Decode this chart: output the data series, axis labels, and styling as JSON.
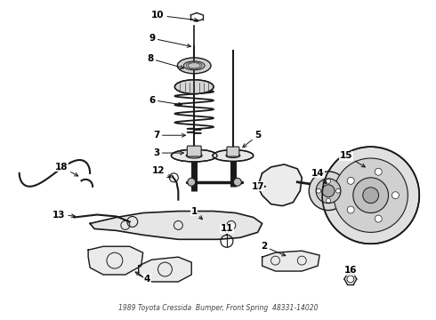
{
  "background_color": "#ffffff",
  "line_color": "#1a1a1a",
  "label_color": "#000000",
  "fig_width": 4.9,
  "fig_height": 3.6,
  "dpi": 100,
  "caption": "1989 Toyota Cressida  Bumper, Front Spring  48331-14020",
  "label_fontsize": 7.5,
  "caption_fontsize": 5.5
}
